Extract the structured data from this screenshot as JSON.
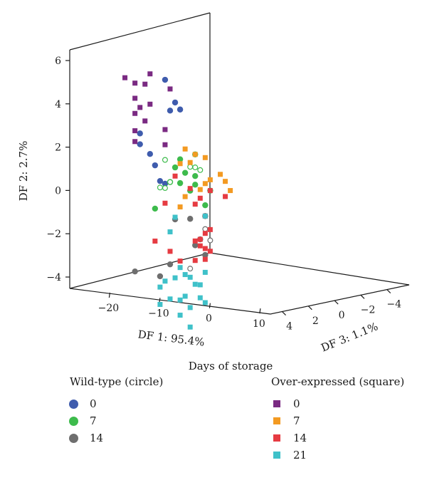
{
  "chart_data": {
    "type": "scatter",
    "subtype": "3d",
    "axes": {
      "df1": {
        "label": "DF 1: 95.4%",
        "ticks": [
          -20,
          -10,
          0,
          10
        ],
        "range": [
          -28,
          15
        ]
      },
      "df2": {
        "label": "DF 2: 2.7%",
        "ticks": [
          -4,
          -2,
          0,
          2,
          4,
          6
        ],
        "range": [
          -4.5,
          6.5
        ]
      },
      "df3": {
        "label": "DF 3: 1.1%",
        "ticks": [
          4,
          2,
          0,
          -2,
          -4
        ],
        "range": [
          5,
          -5
        ]
      }
    },
    "legend_caption": "Days of storage",
    "legend_groups": [
      {
        "title": "Wild-type (circle)",
        "marker": "circle",
        "entries": [
          {
            "label": "0",
            "color": "#3f5cad"
          },
          {
            "label": "7",
            "color": "#3dbb4c"
          },
          {
            "label": "14",
            "color": "#6e6e6e"
          }
        ]
      },
      {
        "title": "Over-expressed (square)",
        "marker": "square",
        "entries": [
          {
            "label": "0",
            "color": "#7a2a82"
          },
          {
            "label": "7",
            "color": "#f39a22"
          },
          {
            "label": "14",
            "color": "#e63b42"
          },
          {
            "label": "21",
            "color": "#3fc1c9"
          }
        ]
      }
    ],
    "series": [
      {
        "name": "Wild-type 0",
        "marker": "circle",
        "color": "#3f5cad",
        "projected_points": [
          [
            -9,
            5.6
          ],
          [
            -7,
            4.6
          ],
          [
            -8,
            4.2
          ],
          [
            -6,
            4.3
          ],
          [
            -14,
            3.0
          ],
          [
            -14,
            2.5
          ],
          [
            -12,
            2.1
          ],
          [
            -11,
            1.6
          ],
          [
            -10,
            0.9
          ],
          [
            -9,
            0.8
          ]
        ]
      },
      {
        "name": "Wild-type 7",
        "marker": "circle",
        "color": "#3dbb4c",
        "projected_points": [
          [
            -3,
            2.3
          ],
          [
            -6,
            2.0
          ],
          [
            -7,
            1.6
          ],
          [
            -5,
            1.4
          ],
          [
            -3,
            1.3
          ],
          [
            -8,
            0.9
          ],
          [
            -6,
            0.9
          ],
          [
            -3,
            0.9
          ],
          [
            0,
            0.7
          ],
          [
            -4,
            0.6
          ],
          [
            -1,
            0.0
          ],
          [
            -11,
            -0.4
          ]
        ]
      },
      {
        "name": "Wild-type 7 (open)",
        "marker": "circle-open",
        "color": "#3dbb4c",
        "projected_points": [
          [
            -9,
            1.9
          ],
          [
            -4,
            1.7
          ],
          [
            -3,
            1.7
          ],
          [
            -2,
            1.6
          ],
          [
            -8,
            0.9
          ],
          [
            -10,
            0.6
          ],
          [
            -9,
            0.6
          ]
        ]
      },
      {
        "name": "Wild-type 14",
        "marker": "circle",
        "color": "#6e6e6e",
        "projected_points": [
          [
            -7,
            -0.8
          ],
          [
            -4,
            -0.7
          ],
          [
            -1,
            -0.5
          ],
          [
            -2,
            -1.6
          ],
          [
            -1,
            -2.3
          ],
          [
            -3,
            -1.9
          ],
          [
            -8,
            -2.9
          ],
          [
            -10,
            -3.5
          ],
          [
            -15,
            -3.4
          ]
        ]
      },
      {
        "name": "Wild-type 14 (open)",
        "marker": "circle-open",
        "color": "#6e6e6e",
        "projected_points": [
          [
            -1,
            -1.1
          ],
          [
            0,
            -1.6
          ],
          [
            -4,
            -3.0
          ]
        ]
      },
      {
        "name": "Over-expressed 0",
        "marker": "square",
        "color": "#7a2a82",
        "projected_points": [
          [
            -12,
            5.8
          ],
          [
            -17,
            5.5
          ],
          [
            -13,
            5.3
          ],
          [
            -8,
            5.2
          ],
          [
            -15,
            5.3
          ],
          [
            -15,
            4.6
          ],
          [
            -12,
            4.4
          ],
          [
            -14,
            4.2
          ],
          [
            -15,
            3.9
          ],
          [
            -13,
            3.6
          ],
          [
            -9,
            3.3
          ],
          [
            -15,
            3.1
          ],
          [
            -15,
            2.6
          ],
          [
            -9,
            2.6
          ]
        ]
      },
      {
        "name": "Over-expressed 7",
        "marker": "square",
        "color": "#f39a22",
        "projected_points": [
          [
            -5,
            2.5
          ],
          [
            -3,
            2.3
          ],
          [
            -1,
            2.2
          ],
          [
            -4,
            1.9
          ],
          [
            -6,
            1.8
          ],
          [
            2,
            1.5
          ],
          [
            0,
            1.2
          ],
          [
            3,
            1.2
          ],
          [
            -1,
            1.0
          ],
          [
            4,
            0.8
          ],
          [
            -2,
            0.7
          ],
          [
            -5,
            0.3
          ],
          [
            -6,
            -0.2
          ]
        ]
      },
      {
        "name": "Over-expressed 14",
        "marker": "square",
        "color": "#e63b42",
        "projected_points": [
          [
            -7,
            1.2
          ],
          [
            -4,
            0.7
          ],
          [
            0,
            0.7
          ],
          [
            3,
            0.5
          ],
          [
            -2,
            0.3
          ],
          [
            -3,
            0.0
          ],
          [
            -1,
            -0.5
          ],
          [
            -9,
            -0.1
          ],
          [
            0,
            -1.1
          ],
          [
            -1,
            -1.3
          ],
          [
            -2,
            -1.6
          ],
          [
            -3,
            -1.7
          ],
          [
            -2,
            -1.9
          ],
          [
            -1,
            -2.0
          ],
          [
            0,
            -2.1
          ],
          [
            -1,
            -2.5
          ],
          [
            -3,
            -2.6
          ],
          [
            -8,
            -2.3
          ],
          [
            -6,
            -2.7
          ],
          [
            -11,
            -1.9
          ]
        ]
      },
      {
        "name": "Over-expressed 21",
        "marker": "square",
        "color": "#3fc1c9",
        "projected_points": [
          [
            -1,
            -0.5
          ],
          [
            -7,
            -0.7
          ],
          [
            -8,
            -1.4
          ],
          [
            -6,
            -3.0
          ],
          [
            -5,
            -3.3
          ],
          [
            -4,
            -3.4
          ],
          [
            -1,
            -3.1
          ],
          [
            -2,
            -3.7
          ],
          [
            -3,
            -3.7
          ],
          [
            -7,
            -3.5
          ],
          [
            -9,
            -3.7
          ],
          [
            -10,
            -4.0
          ],
          [
            -5,
            -4.3
          ],
          [
            -2,
            -4.3
          ],
          [
            -8,
            -4.5
          ],
          [
            -10,
            -4.8
          ],
          [
            -1,
            -4.5
          ],
          [
            -6,
            -4.5
          ],
          [
            -4,
            -4.8
          ],
          [
            -6,
            -5.2
          ],
          [
            -4,
            -5.7
          ]
        ]
      }
    ]
  }
}
